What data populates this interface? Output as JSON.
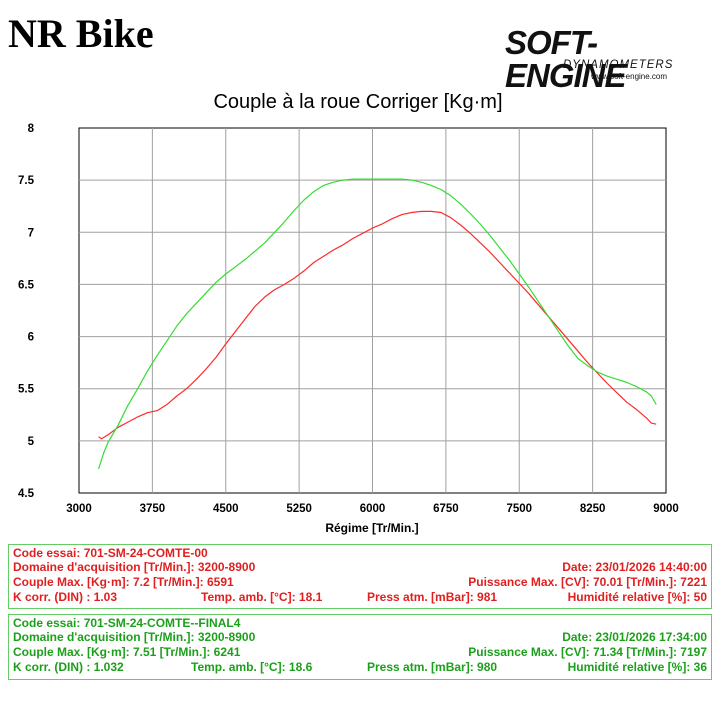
{
  "header": {
    "brand": "NR Bike",
    "logo_main": "SOFT-ENGINE",
    "logo_sub": "DYNAMOMETERS",
    "logo_url": "www.soft-engine.com"
  },
  "colors": {
    "run1": "#ff2a2a",
    "run2": "#33dd33",
    "grid": "#a0a0a0",
    "panel_border": "#66cc66"
  },
  "chart_data": {
    "type": "line",
    "title": "Couple à la roue Corriger [Kg·m]",
    "xlabel": "Régime [Tr/Min.]",
    "ylabel": "",
    "xlim": [
      3000,
      9000
    ],
    "ylim": [
      4.5,
      8
    ],
    "x_ticks": [
      "3000",
      "3750",
      "4500",
      "5250",
      "6000",
      "6750",
      "7500",
      "8250",
      "9000"
    ],
    "y_ticks": [
      "8",
      "7.5",
      "7",
      "6.5",
      "6",
      "5.5",
      "5",
      "4.5"
    ],
    "grid": true,
    "series": [
      {
        "color": "#ff2a2a",
        "x": [
          3200,
          3230,
          3300,
          3400,
          3500,
          3600,
          3700,
          3800,
          3900,
          4000,
          4100,
          4200,
          4300,
          4400,
          4500,
          4600,
          4700,
          4800,
          4900,
          5000,
          5100,
          5200,
          5300,
          5400,
          5500,
          5600,
          5700,
          5800,
          5900,
          6000,
          6100,
          6200,
          6300,
          6400,
          6500,
          6600,
          6700,
          6800,
          6900,
          7000,
          7100,
          7200,
          7300,
          7400,
          7500,
          7600,
          7700,
          7800,
          7900,
          8000,
          8100,
          8200,
          8300,
          8400,
          8500,
          8600,
          8700,
          8800,
          8850,
          8900
        ],
        "y": [
          5.04,
          5.02,
          5.06,
          5.13,
          5.18,
          5.23,
          5.27,
          5.29,
          5.35,
          5.43,
          5.5,
          5.59,
          5.69,
          5.8,
          5.93,
          6.05,
          6.17,
          6.29,
          6.38,
          6.45,
          6.5,
          6.56,
          6.63,
          6.71,
          6.77,
          6.83,
          6.88,
          6.94,
          6.99,
          7.04,
          7.08,
          7.13,
          7.17,
          7.19,
          7.2,
          7.2,
          7.19,
          7.14,
          7.07,
          6.99,
          6.9,
          6.81,
          6.71,
          6.61,
          6.51,
          6.41,
          6.3,
          6.19,
          6.08,
          5.97,
          5.86,
          5.75,
          5.65,
          5.55,
          5.46,
          5.37,
          5.3,
          5.22,
          5.17,
          5.16
        ]
      },
      {
        "color": "#33dd33",
        "x": [
          3200,
          3250,
          3300,
          3400,
          3500,
          3600,
          3700,
          3800,
          3900,
          4000,
          4100,
          4200,
          4300,
          4400,
          4500,
          4600,
          4700,
          4800,
          4900,
          5000,
          5100,
          5200,
          5300,
          5400,
          5500,
          5600,
          5700,
          5800,
          5900,
          6000,
          6100,
          6200,
          6300,
          6400,
          6500,
          6600,
          6700,
          6800,
          6900,
          7000,
          7100,
          7200,
          7300,
          7400,
          7500,
          7600,
          7700,
          7800,
          7900,
          8000,
          8100,
          8200,
          8300,
          8400,
          8500,
          8600,
          8700,
          8800,
          8850,
          8900
        ],
        "y": [
          4.73,
          4.88,
          4.99,
          5.15,
          5.34,
          5.5,
          5.67,
          5.82,
          5.96,
          6.1,
          6.22,
          6.32,
          6.42,
          6.52,
          6.6,
          6.67,
          6.74,
          6.82,
          6.9,
          7.0,
          7.1,
          7.21,
          7.31,
          7.39,
          7.45,
          7.48,
          7.5,
          7.51,
          7.51,
          7.51,
          7.51,
          7.51,
          7.51,
          7.5,
          7.48,
          7.45,
          7.41,
          7.35,
          7.27,
          7.18,
          7.08,
          6.97,
          6.85,
          6.73,
          6.6,
          6.47,
          6.33,
          6.19,
          6.05,
          5.91,
          5.79,
          5.72,
          5.66,
          5.62,
          5.59,
          5.56,
          5.52,
          5.47,
          5.43,
          5.35
        ]
      }
    ]
  },
  "runs": [
    {
      "code": "Code essai: 701-SM-24-COMTE-00",
      "domaine": "Domaine d'acquisition [Tr/Min.]: 3200-8900",
      "date": "Date: 23/01/2026   14:40:00",
      "couple": "Couple Max. [Kg·m]: 7.2   [Tr/Min.]: 6591",
      "puissance": "Puissance Max. [CV]: 70.01   [Tr/Min.]: 7221",
      "kcorr": "K corr. (DIN) : 1.03",
      "temp": "Temp. amb. [°C]: 18.1",
      "press": "Press atm. [mBar]: 981",
      "hum": "Humidité relative [%]: 50"
    },
    {
      "code": "Code essai: 701-SM-24-COMTE--FINAL4",
      "domaine": "Domaine d'acquisition [Tr/Min.]: 3200-8900",
      "date": "Date: 23/01/2026   17:34:00",
      "couple": "Couple Max. [Kg·m]: 7.51   [Tr/Min.]: 6241",
      "puissance": "Puissance Max. [CV]: 71.34   [Tr/Min.]: 7197",
      "kcorr": "K corr. (DIN) : 1.032",
      "temp": "Temp. amb. [°C]: 18.6",
      "press": "Press atm. [mBar]: 980",
      "hum": "Humidité relative [%]: 36"
    }
  ]
}
